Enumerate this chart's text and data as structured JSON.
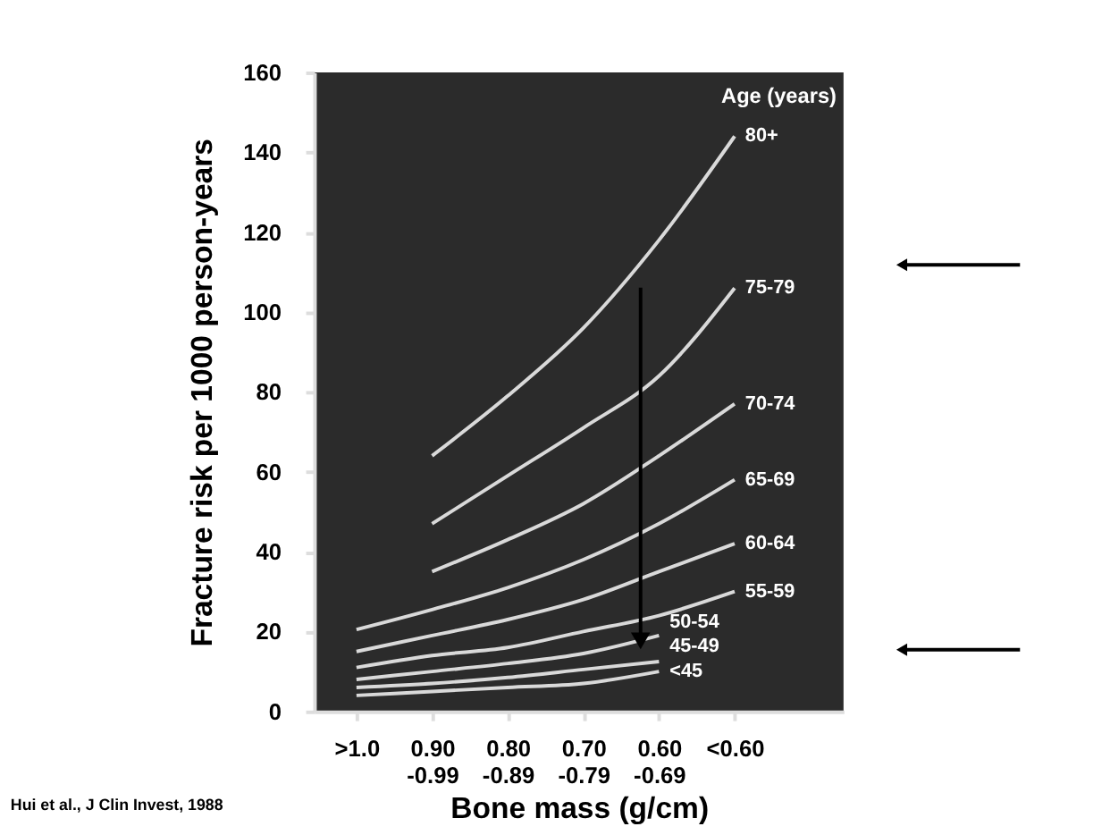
{
  "chart_data": {
    "type": "line",
    "xlabel": "Bone mass (g/cm)",
    "ylabel": "Fracture risk per 1000 person-years",
    "legend_title": "Age (years)",
    "categories": [
      ">1.0",
      "0.90 -0.99",
      "0.80 -0.89",
      "0.70 -0.79",
      "0.60 -0.69",
      "<0.60"
    ],
    "ylim": [
      0,
      160
    ],
    "yticks": [
      0,
      20,
      40,
      60,
      80,
      100,
      120,
      140,
      160
    ],
    "grid": false,
    "legend": false,
    "annotations": [
      "Hui et al., J Clin Invest, 1988"
    ],
    "series": [
      {
        "name": "80+",
        "color": "#d9d9d9",
        "values": [
          null,
          64,
          79,
          96,
          118,
          144
        ]
      },
      {
        "name": "75-79",
        "color": "#d9d9d9",
        "values": [
          null,
          47,
          59,
          71,
          84,
          106
        ]
      },
      {
        "name": "70-74",
        "color": "#d9d9d9",
        "values": [
          null,
          35,
          43,
          52,
          64,
          77
        ]
      },
      {
        "name": "65-69",
        "color": "#d9d9d9",
        "values": [
          20.5,
          25.5,
          31,
          38,
          47,
          58
        ]
      },
      {
        "name": "60-64",
        "color": "#d9d9d9",
        "values": [
          15,
          19,
          23,
          28,
          35,
          42
        ]
      },
      {
        "name": "55-59",
        "color": "#d9d9d9",
        "values": [
          11,
          14,
          16,
          20,
          24,
          30
        ]
      },
      {
        "name": "50-54",
        "color": "#d9d9d9",
        "values": [
          8,
          10,
          12,
          14.5,
          19,
          null
        ]
      },
      {
        "name": "45-49",
        "color": "#d9d9d9",
        "values": [
          6,
          7,
          8.5,
          10.5,
          12.5,
          null
        ]
      },
      {
        "name": "<45",
        "color": "#d9d9d9",
        "values": [
          4,
          5,
          6,
          7,
          10,
          null
        ]
      }
    ]
  }
}
